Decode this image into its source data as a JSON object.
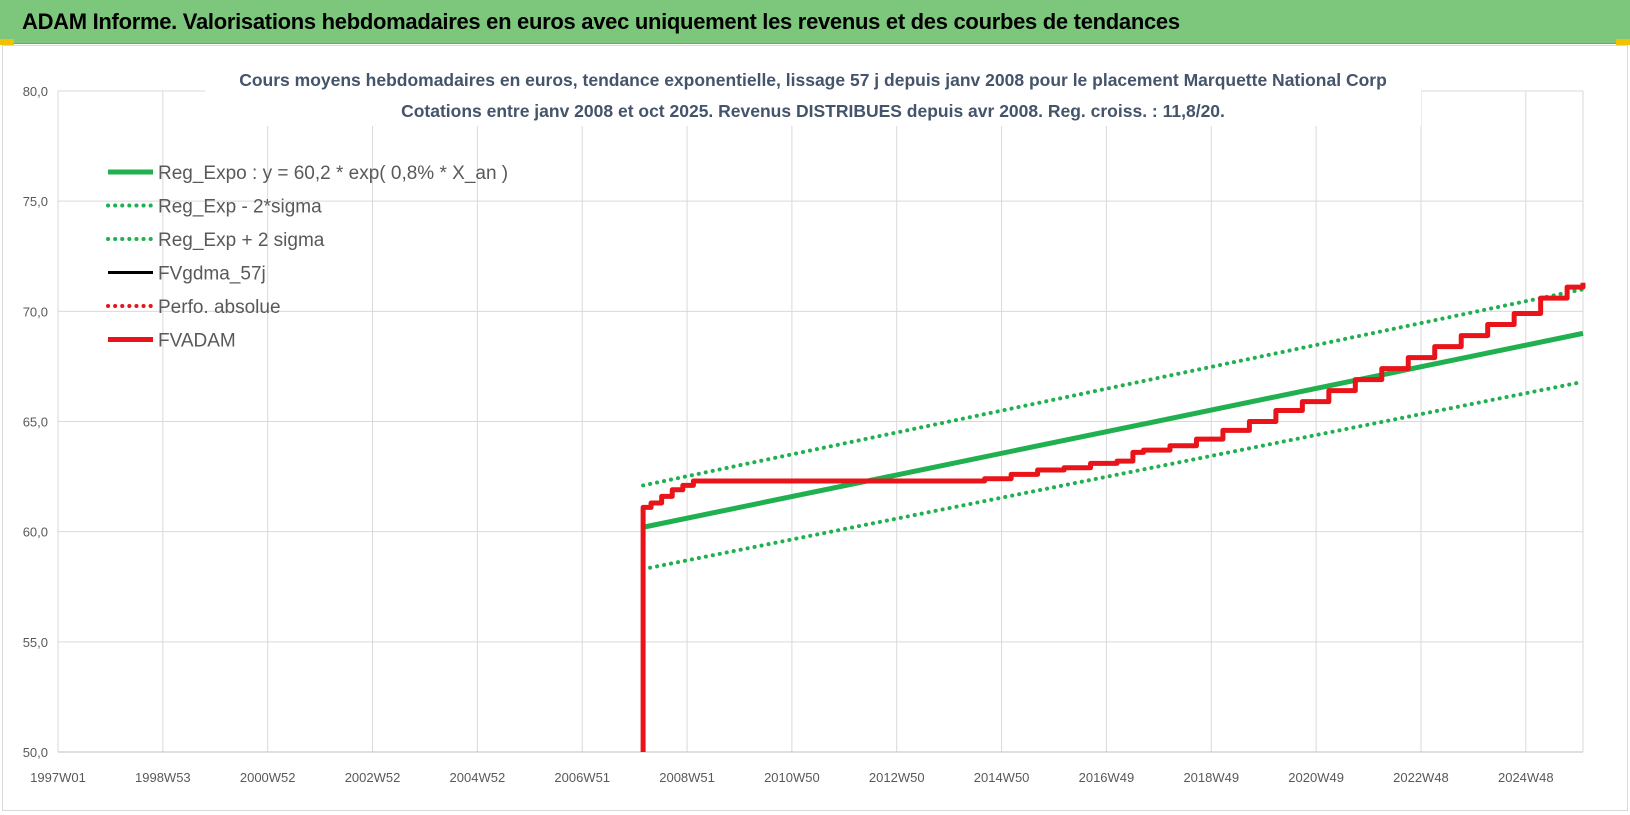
{
  "header": {
    "title": "ADAM Informe. Valorisations hebdomadaires en euros avec uniquement les revenus et des courbes de tendances"
  },
  "colors": {
    "header_bg": "#7dc77d",
    "reg_green": "#20b050",
    "red": "#e8141a",
    "grid": "#d9d9d9",
    "corner": "#f2c200"
  },
  "chart_data": {
    "type": "line",
    "title": "Cours moyens hebdomadaires en euros, tendance exponentielle, lissage 57 j depuis janv 2008  pour le placement Marquette National Corp",
    "subtitle": "Cotations entre janv 2008 et oct 2025. Revenus DISTRIBUES depuis avr 2008. Reg. croiss. : 11,8/20.",
    "xlabel": "",
    "ylabel": "",
    "x_ticks": [
      "1997W01",
      "1998W53",
      "2000W52",
      "2002W52",
      "2004W52",
      "2006W51",
      "2008W51",
      "2010W50",
      "2012W50",
      "2014W50",
      "2016W49",
      "2018W49",
      "2020W49",
      "2022W48",
      "2024W48"
    ],
    "y_ticks": [
      "50,0",
      "55,0",
      "60,0",
      "65,0",
      "70,0",
      "75,0",
      "80,0"
    ],
    "xlim": [
      1997.0,
      2025.8
    ],
    "ylim": [
      50,
      80
    ],
    "grid": true,
    "legend_position": "top-left",
    "series": [
      {
        "name": "Reg_Expo : y = 60,2 * exp( 0,8% *  X_an )",
        "style": "solid-thick",
        "color": "#20b050",
        "x": [
          2008.05,
          2025.8
        ],
        "y": [
          60.2,
          69.0
        ]
      },
      {
        "name": "Reg_Exp - 2*sigma",
        "style": "dotted",
        "color": "#20b050",
        "x": [
          2008.05,
          2025.8
        ],
        "y": [
          58.3,
          66.8
        ]
      },
      {
        "name": "Reg_Exp + 2 sigma",
        "style": "dotted",
        "color": "#20b050",
        "x": [
          2008.05,
          2025.8
        ],
        "y": [
          62.1,
          71.0
        ]
      },
      {
        "name": "FVgdma_57j",
        "style": "solid",
        "color": "#000000",
        "x": [],
        "y": []
      },
      {
        "name": "Perfo. absolue",
        "style": "dotted",
        "color": "#e8141a",
        "x": [],
        "y": []
      },
      {
        "name": "FVADAM",
        "style": "solid-thick",
        "color": "#e8141a",
        "x": [
          2008.05,
          2008.05,
          2008.2,
          2008.4,
          2008.6,
          2008.8,
          2009.0,
          2009.3,
          2010.0,
          2011.0,
          2012.0,
          2013.0,
          2014.0,
          2014.5,
          2015.0,
          2015.5,
          2016.0,
          2016.5,
          2017.0,
          2017.3,
          2017.5,
          2018.0,
          2018.5,
          2019.0,
          2019.5,
          2020.0,
          2020.5,
          2021.0,
          2021.5,
          2022.0,
          2022.5,
          2023.0,
          2023.5,
          2024.0,
          2024.5,
          2025.0,
          2025.5,
          2025.8
        ],
        "y": [
          50.0,
          61.1,
          61.3,
          61.6,
          61.9,
          62.1,
          62.3,
          62.3,
          62.3,
          62.3,
          62.3,
          62.3,
          62.3,
          62.4,
          62.6,
          62.8,
          62.9,
          63.1,
          63.2,
          63.6,
          63.7,
          63.9,
          64.2,
          64.6,
          65.0,
          65.5,
          65.9,
          66.4,
          66.9,
          67.4,
          67.9,
          68.4,
          68.9,
          69.4,
          69.9,
          70.6,
          71.1,
          71.3
        ]
      }
    ]
  }
}
